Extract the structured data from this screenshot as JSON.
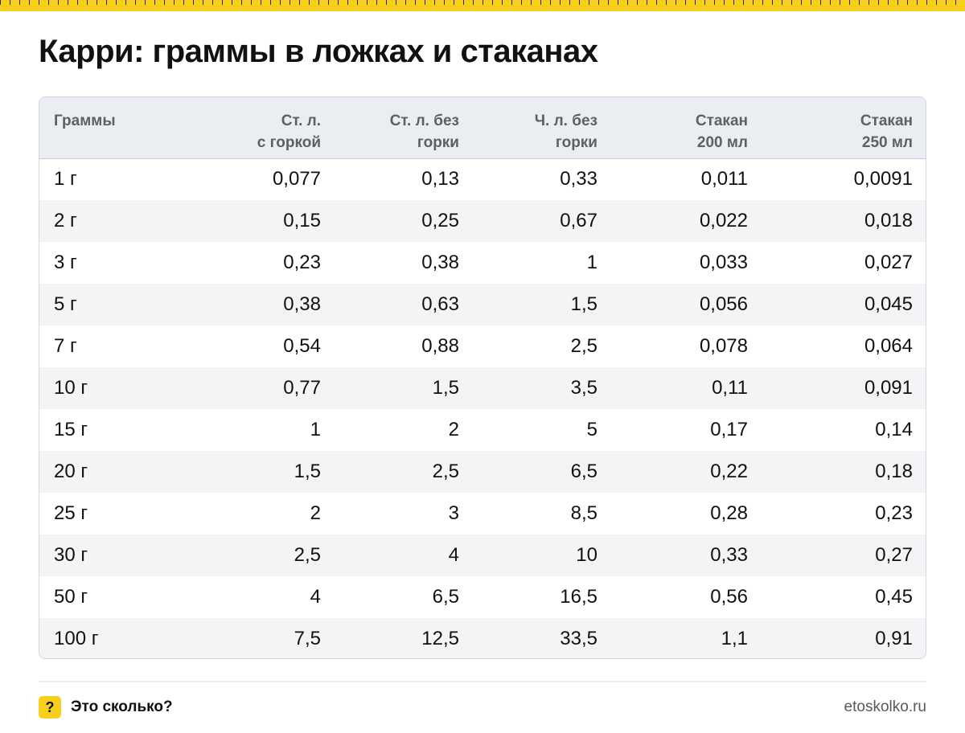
{
  "header": {
    "title": "Карри: граммы в ложках и стаканах"
  },
  "table": {
    "columns": [
      [
        "Граммы"
      ],
      [
        "Ст. л.",
        "с горкой"
      ],
      [
        "Ст. л. без",
        "горки"
      ],
      [
        "Ч. л. без",
        "горки"
      ],
      [
        "Стакан",
        "200 мл"
      ],
      [
        "Стакан",
        "250 мл"
      ]
    ],
    "rows": [
      [
        "1 г",
        "0,077",
        "0,13",
        "0,33",
        "0,011",
        "0,0091"
      ],
      [
        "2 г",
        "0,15",
        "0,25",
        "0,67",
        "0,022",
        "0,018"
      ],
      [
        "3 г",
        "0,23",
        "0,38",
        "1",
        "0,033",
        "0,027"
      ],
      [
        "5 г",
        "0,38",
        "0,63",
        "1,5",
        "0,056",
        "0,045"
      ],
      [
        "7 г",
        "0,54",
        "0,88",
        "2,5",
        "0,078",
        "0,064"
      ],
      [
        "10 г",
        "0,77",
        "1,5",
        "3,5",
        "0,11",
        "0,091"
      ],
      [
        "15 г",
        "1",
        "2",
        "5",
        "0,17",
        "0,14"
      ],
      [
        "20 г",
        "1,5",
        "2,5",
        "6,5",
        "0,22",
        "0,18"
      ],
      [
        "25 г",
        "2",
        "3",
        "8,5",
        "0,28",
        "0,23"
      ],
      [
        "30 г",
        "2,5",
        "4",
        "10",
        "0,33",
        "0,27"
      ],
      [
        "50 г",
        "4",
        "6,5",
        "16,5",
        "0,56",
        "0,45"
      ],
      [
        "100 г",
        "7,5",
        "12,5",
        "33,5",
        "1,1",
        "0,91"
      ]
    ]
  },
  "footer": {
    "badge": "?",
    "brand": "Это сколько?",
    "site": "etoskolko.ru"
  },
  "colors": {
    "accent": "#f7cf1d",
    "header_bg": "#eaedf1",
    "stripe_bg": "#f3f4f6"
  }
}
